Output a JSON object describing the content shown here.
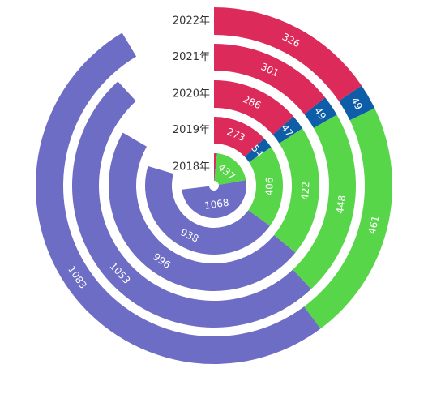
{
  "chart_data": {
    "type": "stacked-radial-bar",
    "categories": [
      "2018年",
      "2019年",
      "2020年",
      "2021年",
      "2022年"
    ],
    "series": [
      {
        "color": "#DC2A5A",
        "values": [
          24,
          273,
          286,
          301,
          326
        ]
      },
      {
        "color": "#0E5DA8",
        "values": [
          6,
          54,
          47,
          49,
          49
        ]
      },
      {
        "color": "#58D64A",
        "values": [
          437,
          406,
          422,
          448,
          461
        ]
      },
      {
        "color": "#6D6DC6",
        "values": [
          1068,
          938,
          996,
          1053,
          1083
        ]
      }
    ],
    "value_labels": [
      [
        "",
        "273",
        "286",
        "301",
        "326"
      ],
      [
        "",
        "54",
        "47",
        "49",
        "49"
      ],
      [
        "437",
        "406",
        "422",
        "448",
        "461"
      ],
      [
        "1068",
        "938",
        "996",
        "1053",
        "1083"
      ]
    ],
    "angle_max": 2100
  }
}
